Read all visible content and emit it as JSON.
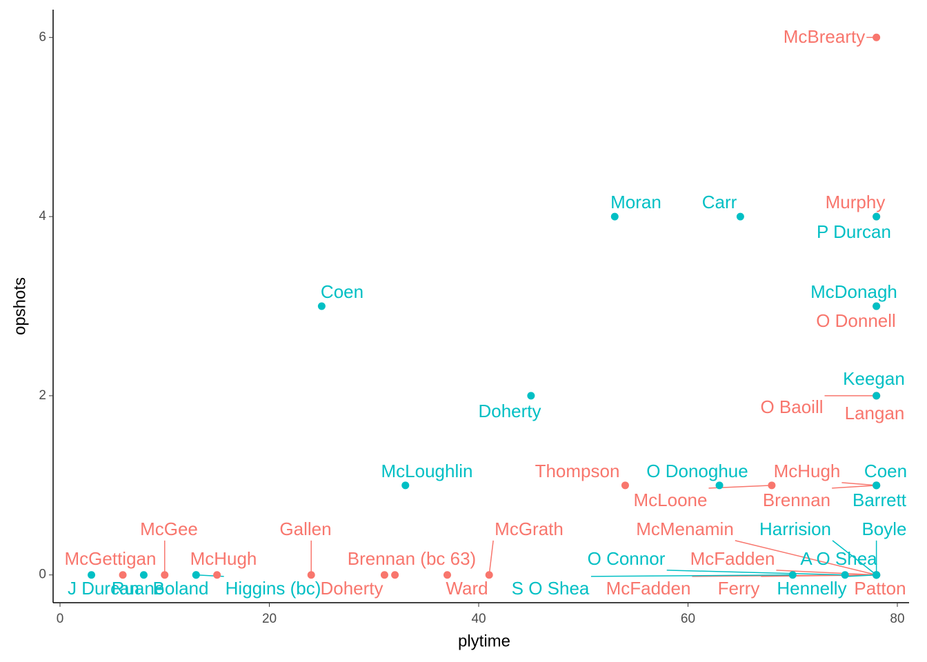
{
  "chart_data": {
    "type": "scatter",
    "x_label": "plytime",
    "y_label": "opshots",
    "xlim": [
      -0.66,
      81.12
    ],
    "ylim": [
      -0.31,
      6.31
    ],
    "xticks": [
      0,
      20,
      40,
      60,
      80
    ],
    "yticks": [
      0,
      2,
      4,
      6
    ],
    "series": [
      {
        "color": "#f8766d",
        "labels": [
          "McGettigan",
          "McGee",
          "McHugh",
          "Gallen",
          "Doherty",
          "Brennan (bc 63)",
          "Ward",
          "McGrath",
          "Thompson",
          "McLoone",
          "McHugh",
          "Brennan",
          "McMenamin",
          "McFadden",
          "McFadden",
          "Ferry",
          "Patton",
          "O Baoill",
          "Langan",
          "O Donnell",
          "Murphy",
          "McBrearty"
        ],
        "x": [
          6,
          10,
          15,
          24,
          31,
          32,
          37,
          41,
          54,
          68,
          78,
          78,
          78,
          78,
          78,
          78,
          78,
          78,
          78,
          78,
          78,
          78
        ],
        "values": [
          0,
          0,
          0,
          0,
          0,
          0,
          0,
          0,
          1,
          1,
          1,
          1,
          0,
          0,
          0,
          0,
          0,
          2,
          2,
          3,
          4,
          6
        ]
      },
      {
        "color": "#00bfc4",
        "labels": [
          "J Durcan",
          "Ruane",
          "Boland",
          "Higgins (bc)",
          "Coen",
          "McLoughlin",
          "Doherty",
          "Moran",
          "Carr",
          "O Donoghue",
          "S O Shea",
          "O Connor",
          "A O Shea",
          "Harrision",
          "Boyle",
          "Hennelly",
          "P Durcan",
          "McDonagh",
          "Keegan",
          "Coen",
          "Barrett"
        ],
        "x": [
          3,
          8,
          13,
          13,
          25,
          33,
          45,
          53,
          65,
          63,
          70,
          75,
          78,
          78,
          78,
          78,
          78,
          78,
          78,
          78,
          78
        ],
        "values": [
          0,
          0,
          0,
          0,
          3,
          1,
          2,
          4,
          4,
          1,
          0,
          0,
          0,
          0,
          0,
          0,
          4,
          3,
          2,
          1,
          1
        ]
      }
    ]
  }
}
